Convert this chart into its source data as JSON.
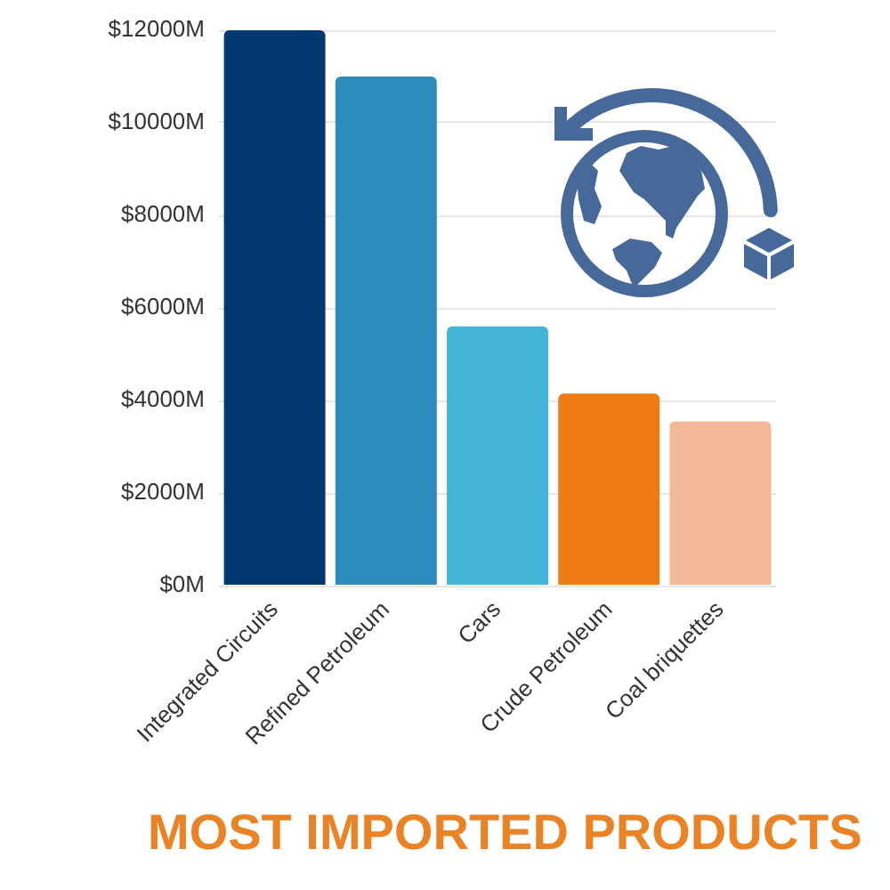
{
  "chart_data": {
    "type": "bar",
    "title": "MOST IMPORTED PRODUCTS",
    "categories": [
      "Integrated Circuits",
      "Refined Petroleum",
      "Cars",
      "Crude Petroleum",
      "Coal briquettes"
    ],
    "values": [
      12000,
      11000,
      5600,
      4150,
      3550
    ],
    "colors": [
      "#02386f",
      "#2d8bbd",
      "#42b5d7",
      "#ef7c15",
      "#f3b79a"
    ],
    "ylim": [
      0,
      12000
    ],
    "yticks": [
      {
        "value": 0,
        "label": "$0M"
      },
      {
        "value": 2000,
        "label": "$2000M"
      },
      {
        "value": 4000,
        "label": "$4000M"
      },
      {
        "value": 6000,
        "label": "$6000M"
      },
      {
        "value": 8000,
        "label": "$8000M"
      },
      {
        "value": 10000,
        "label": "$10000M"
      },
      {
        "value": 12000,
        "label": "$12000M"
      }
    ],
    "grid": "y"
  }
}
